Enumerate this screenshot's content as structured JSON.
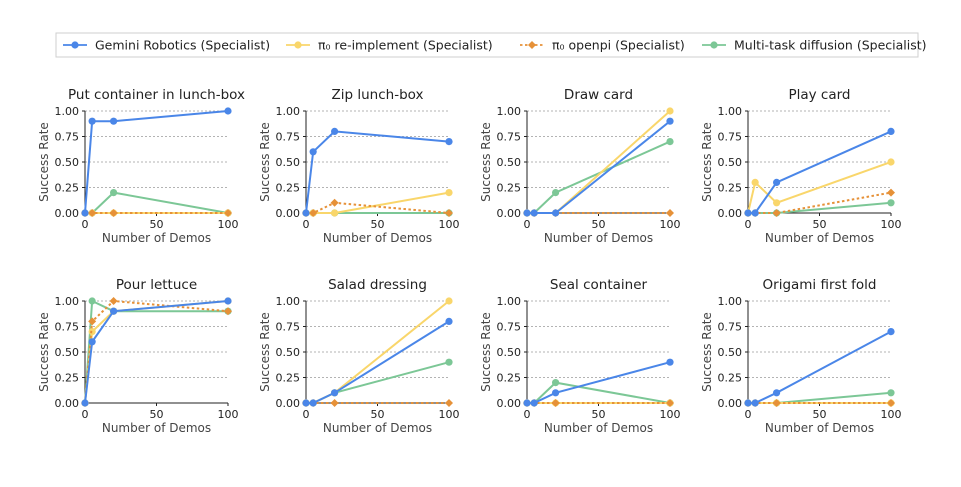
{
  "chart_data": {
    "type": "line",
    "legend": [
      {
        "name": "Gemini Robotics (Specialist)",
        "color": "#4a86e8",
        "marker": "circle",
        "dash": false
      },
      {
        "name": "π₀ re-implement (Specialist)",
        "color": "#f9d66b",
        "marker": "circle",
        "dash": false
      },
      {
        "name": "π₀ openpi (Specialist)",
        "color": "#e69138",
        "marker": "diamond",
        "dash": true
      },
      {
        "name": "Multi-task diffusion (Specialist)",
        "color": "#7cc796",
        "marker": "circle",
        "dash": false
      }
    ],
    "xlabel": "Number of Demos",
    "ylabel": "Success Rate",
    "xlim": [
      0,
      100
    ],
    "ylim": [
      0,
      1
    ],
    "xticks": [
      "0",
      "50",
      "100"
    ],
    "yticks": [
      "0.00",
      "0.25",
      "0.50",
      "0.75",
      "1.00"
    ],
    "panels": [
      {
        "title": "Put container in lunch-box",
        "series": [
          {
            "name": "Multi-task diffusion (Specialist)",
            "x": [
              0,
              5,
              20,
              100
            ],
            "y": [
              0,
              0,
              0.2,
              0
            ]
          },
          {
            "name": "π₀ re-implement (Specialist)",
            "x": [
              0,
              5,
              20,
              100
            ],
            "y": [
              0,
              0,
              0,
              0
            ]
          },
          {
            "name": "π₀ openpi (Specialist)",
            "x": [
              0,
              5,
              20,
              100
            ],
            "y": [
              0,
              0,
              0,
              0
            ]
          },
          {
            "name": "Gemini Robotics (Specialist)",
            "x": [
              0,
              5,
              20,
              100
            ],
            "y": [
              0,
              0.9,
              0.9,
              1.0
            ]
          }
        ]
      },
      {
        "title": "Zip lunch-box",
        "series": [
          {
            "name": "Multi-task diffusion (Specialist)",
            "x": [
              0,
              5,
              20,
              100
            ],
            "y": [
              0,
              0,
              0,
              0
            ]
          },
          {
            "name": "π₀ re-implement (Specialist)",
            "x": [
              0,
              5,
              20,
              100
            ],
            "y": [
              0,
              0,
              0,
              0.2
            ]
          },
          {
            "name": "π₀ openpi (Specialist)",
            "x": [
              0,
              5,
              20,
              100
            ],
            "y": [
              0,
              0,
              0.1,
              0
            ]
          },
          {
            "name": "Gemini Robotics (Specialist)",
            "x": [
              0,
              5,
              20,
              100
            ],
            "y": [
              0,
              0.6,
              0.8,
              0.7
            ]
          }
        ]
      },
      {
        "title": "Draw card",
        "series": [
          {
            "name": "Multi-task diffusion (Specialist)",
            "x": [
              0,
              5,
              20,
              100
            ],
            "y": [
              0,
              0,
              0.2,
              0.7
            ]
          },
          {
            "name": "π₀ re-implement (Specialist)",
            "x": [
              0,
              5,
              20,
              100
            ],
            "y": [
              0,
              0,
              0,
              1.0
            ]
          },
          {
            "name": "π₀ openpi (Specialist)",
            "x": [
              0,
              5,
              20,
              100
            ],
            "y": [
              0,
              0,
              0,
              0
            ]
          },
          {
            "name": "Gemini Robotics (Specialist)",
            "x": [
              0,
              5,
              20,
              100
            ],
            "y": [
              0,
              0,
              0,
              0.9
            ]
          }
        ]
      },
      {
        "title": "Play card",
        "series": [
          {
            "name": "Multi-task diffusion (Specialist)",
            "x": [
              0,
              5,
              20,
              100
            ],
            "y": [
              0,
              0,
              0,
              0.1
            ]
          },
          {
            "name": "π₀ re-implement (Specialist)",
            "x": [
              0,
              5,
              20,
              100
            ],
            "y": [
              0,
              0.3,
              0.1,
              0.5
            ]
          },
          {
            "name": "π₀ openpi (Specialist)",
            "x": [
              0,
              5,
              20,
              100
            ],
            "y": [
              0,
              0,
              0,
              0.2
            ]
          },
          {
            "name": "Gemini Robotics (Specialist)",
            "x": [
              0,
              5,
              20,
              100
            ],
            "y": [
              0,
              0,
              0.3,
              0.8
            ]
          }
        ]
      },
      {
        "title": "Pour lettuce",
        "series": [
          {
            "name": "Multi-task diffusion (Specialist)",
            "x": [
              0,
              5,
              20,
              100
            ],
            "y": [
              0,
              1.0,
              0.9,
              0.9
            ]
          },
          {
            "name": "π₀ re-implement (Specialist)",
            "x": [
              0,
              5,
              20,
              100
            ],
            "y": [
              0,
              0.7,
              0.9,
              1.0
            ]
          },
          {
            "name": "π₀ openpi (Specialist)",
            "x": [
              0,
              5,
              20,
              100
            ],
            "y": [
              0,
              0.8,
              1.0,
              0.9
            ]
          },
          {
            "name": "Gemini Robotics (Specialist)",
            "x": [
              0,
              5,
              20,
              100
            ],
            "y": [
              0,
              0.6,
              0.9,
              1.0
            ]
          }
        ]
      },
      {
        "title": "Salad dressing",
        "series": [
          {
            "name": "Multi-task diffusion (Specialist)",
            "x": [
              0,
              5,
              20,
              100
            ],
            "y": [
              0,
              0,
              0.1,
              0.4
            ]
          },
          {
            "name": "π₀ re-implement (Specialist)",
            "x": [
              0,
              5,
              20,
              100
            ],
            "y": [
              0,
              0,
              0.1,
              1.0
            ]
          },
          {
            "name": "π₀ openpi (Specialist)",
            "x": [
              0,
              5,
              20,
              100
            ],
            "y": [
              0,
              0,
              0,
              0
            ]
          },
          {
            "name": "Gemini Robotics (Specialist)",
            "x": [
              0,
              5,
              20,
              100
            ],
            "y": [
              0,
              0,
              0.1,
              0.8
            ]
          }
        ]
      },
      {
        "title": "Seal container",
        "series": [
          {
            "name": "Multi-task diffusion (Specialist)",
            "x": [
              0,
              5,
              20,
              100
            ],
            "y": [
              0,
              0,
              0.2,
              0
            ]
          },
          {
            "name": "π₀ re-implement (Specialist)",
            "x": [
              0,
              5,
              20,
              100
            ],
            "y": [
              0,
              0,
              0,
              0
            ]
          },
          {
            "name": "π₀ openpi (Specialist)",
            "x": [
              0,
              5,
              20,
              100
            ],
            "y": [
              0,
              0,
              0,
              0
            ]
          },
          {
            "name": "Gemini Robotics (Specialist)",
            "x": [
              0,
              5,
              20,
              100
            ],
            "y": [
              0,
              0,
              0.1,
              0.4
            ]
          }
        ]
      },
      {
        "title": "Origami first fold",
        "series": [
          {
            "name": "Multi-task diffusion (Specialist)",
            "x": [
              0,
              5,
              20,
              100
            ],
            "y": [
              0,
              0,
              0,
              0.1
            ]
          },
          {
            "name": "π₀ re-implement (Specialist)",
            "x": [
              0,
              5,
              20,
              100
            ],
            "y": [
              0,
              0,
              0,
              0
            ]
          },
          {
            "name": "π₀ openpi (Specialist)",
            "x": [
              0,
              5,
              20,
              100
            ],
            "y": [
              0,
              0,
              0,
              0
            ]
          },
          {
            "name": "Gemini Robotics (Specialist)",
            "x": [
              0,
              5,
              20,
              100
            ],
            "y": [
              0,
              0,
              0.1,
              0.7
            ]
          }
        ]
      }
    ]
  }
}
